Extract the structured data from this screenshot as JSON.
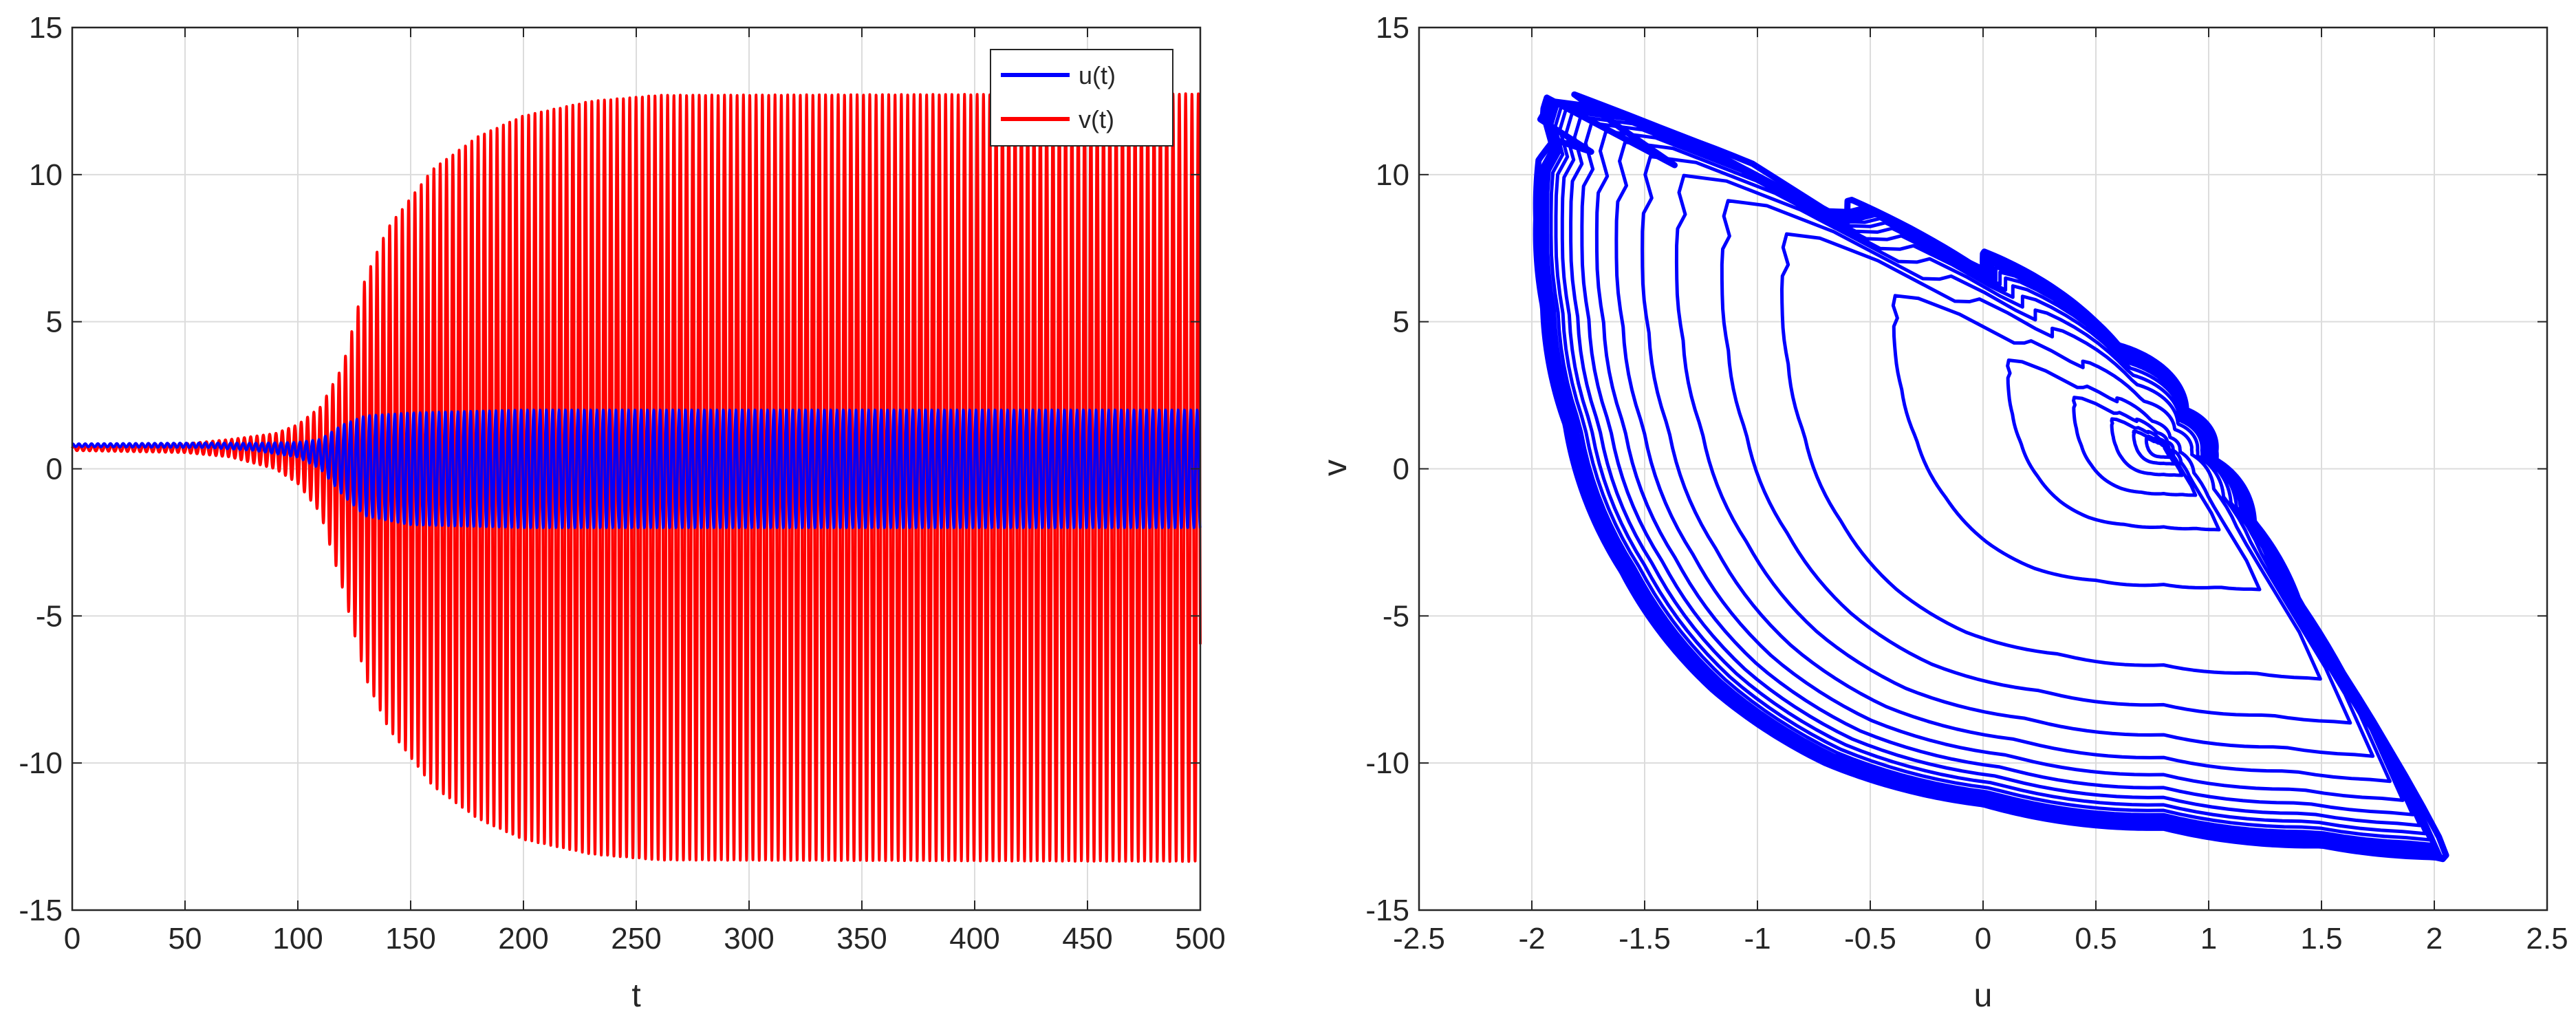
{
  "colors": {
    "u_line": "#0000ff",
    "v_line": "#ff0000",
    "grid": "#dcdcdc",
    "axes": "#262626",
    "background": "#ffffff"
  },
  "chart_data": [
    {
      "type": "line",
      "title": "",
      "xlabel": "t",
      "ylabel": "",
      "xlim": [
        0,
        500
      ],
      "ylim": [
        -15,
        15
      ],
      "xticks": [
        0,
        50,
        100,
        150,
        200,
        250,
        300,
        350,
        400,
        450,
        500
      ],
      "yticks": [
        -15,
        -10,
        -5,
        0,
        5,
        10,
        15
      ],
      "xtick_labels": [
        "0",
        "50",
        "100",
        "150",
        "200",
        "250",
        "300",
        "350",
        "400",
        "450",
        "500"
      ],
      "ytick_labels": [
        "-15",
        "-10",
        "-5",
        "0",
        "5",
        "10",
        "15"
      ],
      "grid": true,
      "legend_position": "top-right",
      "legend": [
        "u(t)",
        "v(t)"
      ],
      "series": [
        {
          "name": "u(t)",
          "color": "#0000ff",
          "envelope": {
            "t": [
              0,
              60,
              80,
              100,
              110,
              120,
              130,
              150,
              200,
              500
            ],
            "center": [
              0.8,
              0.8,
              0.75,
              0.65,
              0.5,
              0.3,
              0.1,
              0.0,
              0.0,
              0.0
            ],
            "amplitude": [
              0.05,
              0.08,
              0.12,
              0.25,
              0.5,
              1.2,
              1.7,
              1.9,
              2.0,
              2.0
            ]
          },
          "oscillation_period": 2.8
        },
        {
          "name": "v(t)",
          "color": "#ff0000",
          "envelope": {
            "t": [
              0,
              50,
              70,
              90,
              100,
              110,
              120,
              130,
              140,
              160,
              180,
              200,
              230,
              260,
              500
            ],
            "center": [
              0.7,
              0.7,
              0.7,
              0.6,
              0.5,
              0.3,
              -0.3,
              -0.3,
              -0.3,
              -0.3,
              -0.3,
              -0.3,
              -0.3,
              -0.3,
              -0.3
            ],
            "amplitude": [
              0.08,
              0.15,
              0.3,
              0.6,
              1.0,
              1.8,
              3.8,
              6.8,
              8.5,
              10.5,
              11.6,
              12.3,
              12.8,
              13.0,
              13.05
            ]
          },
          "oscillation_period": 2.8
        }
      ]
    },
    {
      "type": "line",
      "title": "",
      "xlabel": "u",
      "ylabel": "v",
      "xlim": [
        -2.5,
        2.5
      ],
      "ylim": [
        -15,
        15
      ],
      "xticks": [
        -2.5,
        -2,
        -1.5,
        -1,
        -0.5,
        0,
        0.5,
        1,
        1.5,
        2,
        2.5
      ],
      "yticks": [
        -15,
        -10,
        -5,
        0,
        5,
        10,
        15
      ],
      "xtick_labels": [
        "-2.5",
        "-2",
        "-1.5",
        "-1",
        "-0.5",
        "0",
        "0.5",
        "1",
        "1.5",
        "2",
        "2.5"
      ],
      "ytick_labels": [
        "-15",
        "-10",
        "-5",
        "0",
        "5",
        "10",
        "15"
      ],
      "grid": true,
      "series": [
        {
          "color": "#0000ff",
          "equilibrium": [
            0.8,
            0.7
          ],
          "limit_cycle": {
            "u": [
              1.03,
              0.6,
              0.0,
              -0.6,
              -1.2,
              -1.6,
              -1.8,
              -1.9,
              -1.95,
              -1.97,
              -1.95,
              -1.9,
              -1.85,
              -1.8,
              -1.7,
              -1.5,
              -1.3,
              -1.0,
              -0.6,
              0.0,
              0.5,
              0.9,
              1.03,
              1.2,
              1.4,
              1.6,
              1.8,
              1.95,
              2.02,
              2.06,
              2.0,
              1.5,
              0.8,
              0.0,
              -0.7,
              -1.2,
              -1.6,
              -1.85,
              -1.95,
              -1.98,
              -1.97,
              -1.95,
              -1.93
            ],
            "v": [
              0.6,
              4.2,
              6.7,
              8.3,
              9.6,
              10.3,
              10.9,
              11.2,
              11.5,
              11.8,
              12.2,
              12.6,
              12.8,
              12.7,
              12.4,
              11.8,
              11.2,
              10.3,
              9.2,
              7.4,
              5.0,
              2.0,
              0.3,
              -1.8,
              -4.5,
              -7.0,
              -9.5,
              -11.5,
              -12.5,
              -13.3,
              -13.2,
              -12.8,
              -12.2,
              -11.4,
              -10.0,
              -7.5,
              -3.5,
              1.5,
              5.5,
              8.5,
              10.5,
              12.0,
              12.7
            ]
          },
          "loop_count": 22
        }
      ]
    }
  ]
}
